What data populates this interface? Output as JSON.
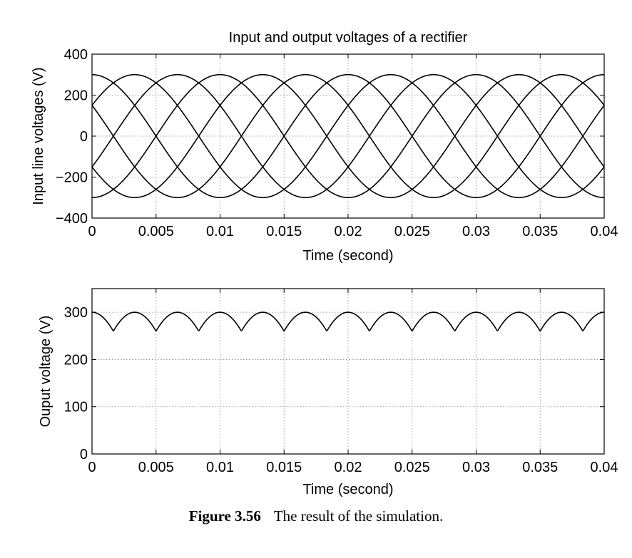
{
  "chart_data": [
    {
      "type": "line",
      "title": "Input and output voltages of a rectifier",
      "xlabel": "Time (second)",
      "ylabel": "Input line voltages (V)",
      "xlim": [
        0,
        0.04
      ],
      "ylim": [
        -400,
        400
      ],
      "xticks": [
        "0",
        "0.005",
        "0.01",
        "0.015",
        "0.02",
        "0.025",
        "0.03",
        "0.035",
        "0.04"
      ],
      "yticks": [
        "400",
        "200",
        "0",
        "−200",
        "−400"
      ],
      "grid": true,
      "line_color": "#000000",
      "signal": {
        "amplitude": 300,
        "frequency_hz": 50,
        "curves": [
          {
            "phase_deg": 90
          },
          {
            "phase_deg": -30
          },
          {
            "phase_deg": 210
          },
          {
            "phase_deg": -90
          },
          {
            "phase_deg": 150
          },
          {
            "phase_deg": 30
          }
        ]
      }
    },
    {
      "type": "line",
      "title": "",
      "xlabel": "Time (second)",
      "ylabel": "Ouput voltage (V)",
      "xlim": [
        0,
        0.04
      ],
      "ylim": [
        0,
        350
      ],
      "xticks": [
        "0",
        "0.005",
        "0.01",
        "0.015",
        "0.02",
        "0.025",
        "0.03",
        "0.035",
        "0.04"
      ],
      "yticks": [
        "300",
        "200",
        "100",
        "0"
      ],
      "grid": true,
      "line_color": "#000000",
      "signal": {
        "amplitude": 300,
        "frequency_hz": 50,
        "description_rule": "max over six line-voltage phases",
        "min_value": 260,
        "max_value": 300
      }
    }
  ],
  "caption": {
    "label": "Figure 3.56",
    "text": "The result of the simulation."
  }
}
